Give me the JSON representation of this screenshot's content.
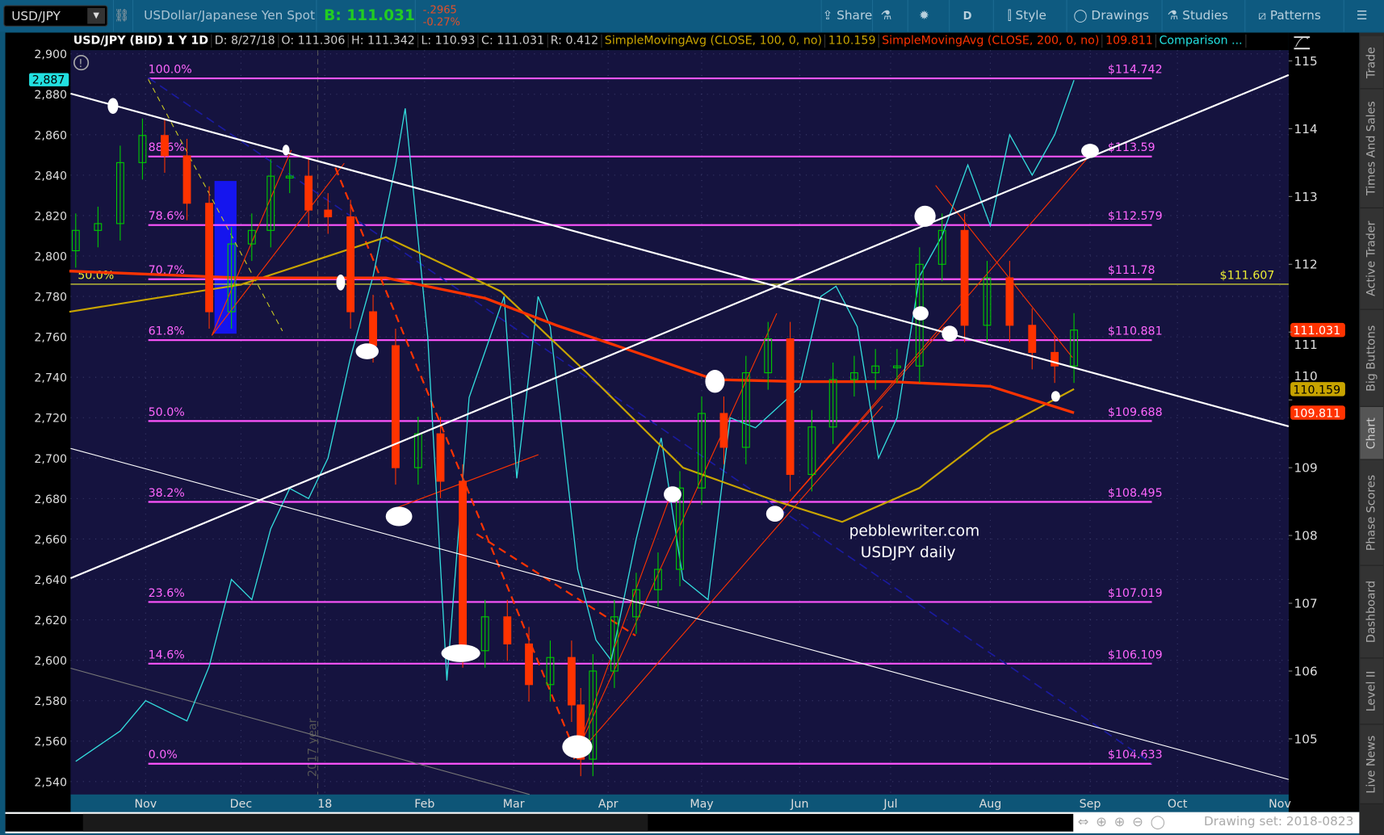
{
  "toolbar": {
    "symbol": "USD/JPY",
    "description": "USDollar/Japanese Yen Spot",
    "bid": "B: 111.031",
    "change": "-.2965",
    "change_pct": "-0.27%",
    "buttons": [
      "Share",
      "D",
      "Style",
      "Drawings",
      "Studies",
      "Patterns"
    ]
  },
  "infobar": {
    "title": "USD/JPY (BID) 1 Y 1D",
    "date": "D: 8/27/18",
    "open": "O: 111.306",
    "high": "H: 111.342",
    "low": "L: 110.93",
    "close": "C: 111.031",
    "range": "R: 0.412",
    "sma100_label": "SimpleMovingAvg (CLOSE, 100, 0, no)",
    "sma100_value": "110.159",
    "sma200_label": "SimpleMovingAvg (CLOSE, 200, 0, no)",
    "sma200_value": "109.811",
    "comparison": "Comparison ..."
  },
  "side_tabs": [
    "Trade",
    "Times And Sales",
    "Active Trader",
    "Big Buttons",
    "Chart",
    "Phase Scores",
    "Dashboard",
    "Level II",
    "Live News"
  ],
  "active_tab": "Chart",
  "status": {
    "drawing_set": "Drawing set: 2018-0823"
  },
  "annotations": {
    "watermark_1": "pebblewriter.com",
    "watermark_2": "USDJPY daily",
    "year_marker": "2017 year",
    "left_fib_label": "50.0%",
    "horizontal_level": "$111.607"
  },
  "colors": {
    "background": "#15133f",
    "fib": "#ff55ff",
    "up": "#00cc00",
    "down": "#ff3300",
    "sma100": "#c8a400",
    "sma200": "#ff3300",
    "comparison": "#33dddd"
  },
  "chart_data": {
    "type": "candlestick",
    "title": "USD/JPY (BID) 1 Y 1D",
    "right_axis": {
      "ticks": [
        "115",
        "114",
        "113",
        "112",
        "111",
        "110",
        "109",
        "108",
        "107",
        "106",
        "105"
      ],
      "range": [
        104.4,
        115.1
      ]
    },
    "left_axis": {
      "ticks": [
        "2,900",
        "2,880",
        "2,860",
        "2,840",
        "2,820",
        "2,800",
        "2,780",
        "2,760",
        "2,740",
        "2,720",
        "2,700",
        "2,680",
        "2,660",
        "2,640",
        "2,620",
        "2,600",
        "2,580",
        "2,560",
        "2,540"
      ],
      "range": [
        2535,
        2902
      ],
      "marker": "2,887"
    },
    "x_ticks": [
      "Nov",
      "Dec",
      "18",
      "Feb",
      "Mar",
      "Apr",
      "May",
      "Jun",
      "Jul",
      "Aug",
      "Sep",
      "Oct",
      "Nov"
    ],
    "price_markers": {
      "last": "111.031",
      "sma100": "110.159",
      "sma200": "109.811"
    },
    "usdjpy_approx_closes": [
      [
        "2017-10-10",
        112.5
      ],
      [
        "2017-10-17",
        112.6
      ],
      [
        "2017-10-24",
        113.5
      ],
      [
        "2017-10-31",
        113.9
      ],
      [
        "2017-11-07",
        113.6
      ],
      [
        "2017-11-14",
        112.9
      ],
      [
        "2017-11-21",
        111.3
      ],
      [
        "2017-11-28",
        112.3
      ],
      [
        "2017-12-05",
        112.5
      ],
      [
        "2017-12-12",
        113.3
      ],
      [
        "2017-12-19",
        113.3
      ],
      [
        "2017-12-26",
        112.8
      ],
      [
        "2018-01-02",
        112.7
      ],
      [
        "2018-01-09",
        111.3
      ],
      [
        "2018-01-16",
        110.8
      ],
      [
        "2018-01-23",
        109.0
      ],
      [
        "2018-01-30",
        109.5
      ],
      [
        "2018-02-06",
        108.8
      ],
      [
        "2018-02-13",
        106.3
      ],
      [
        "2018-02-20",
        106.8
      ],
      [
        "2018-02-27",
        106.4
      ],
      [
        "2018-03-06",
        105.8
      ],
      [
        "2018-03-13",
        106.2
      ],
      [
        "2018-03-20",
        105.5
      ],
      [
        "2018-03-23",
        104.7
      ],
      [
        "2018-03-27",
        106.0
      ],
      [
        "2018-04-03",
        106.8
      ],
      [
        "2018-04-10",
        107.2
      ],
      [
        "2018-04-17",
        107.5
      ],
      [
        "2018-04-24",
        108.7
      ],
      [
        "2018-05-01",
        109.8
      ],
      [
        "2018-05-08",
        109.3
      ],
      [
        "2018-05-15",
        110.4
      ],
      [
        "2018-05-22",
        110.9
      ],
      [
        "2018-05-29",
        108.9
      ],
      [
        "2018-06-05",
        109.6
      ],
      [
        "2018-06-12",
        110.3
      ],
      [
        "2018-06-19",
        110.4
      ],
      [
        "2018-06-26",
        110.5
      ],
      [
        "2018-07-03",
        110.5
      ],
      [
        "2018-07-10",
        112.0
      ],
      [
        "2018-07-17",
        112.5
      ],
      [
        "2018-07-24",
        111.1
      ],
      [
        "2018-07-31",
        111.8
      ],
      [
        "2018-08-07",
        111.1
      ],
      [
        "2018-08-14",
        110.7
      ],
      [
        "2018-08-21",
        110.5
      ],
      [
        "2018-08-27",
        111.03
      ]
    ],
    "comparison_series": [
      [
        "2017-10-10",
        2550
      ],
      [
        "2017-10-24",
        2565
      ],
      [
        "2017-11-01",
        2580
      ],
      [
        "2017-11-14",
        2570
      ],
      [
        "2017-11-21",
        2597
      ],
      [
        "2017-11-28",
        2640
      ],
      [
        "2017-12-05",
        2630
      ],
      [
        "2017-12-12",
        2665
      ],
      [
        "2017-12-19",
        2685
      ],
      [
        "2017-12-26",
        2680
      ],
      [
        "2018-01-02",
        2700
      ],
      [
        "2018-01-09",
        2750
      ],
      [
        "2018-01-16",
        2790
      ],
      [
        "2018-01-23",
        2845
      ],
      [
        "2018-01-26",
        2873
      ],
      [
        "2018-02-02",
        2760
      ],
      [
        "2018-02-08",
        2590
      ],
      [
        "2018-02-15",
        2730
      ],
      [
        "2018-02-26",
        2780
      ],
      [
        "2018-03-02",
        2690
      ],
      [
        "2018-03-09",
        2780
      ],
      [
        "2018-03-13",
        2765
      ],
      [
        "2018-03-22",
        2645
      ],
      [
        "2018-03-28",
        2610
      ],
      [
        "2018-04-02",
        2600
      ],
      [
        "2018-04-10",
        2660
      ],
      [
        "2018-04-18",
        2710
      ],
      [
        "2018-04-25",
        2640
      ],
      [
        "2018-05-03",
        2630
      ],
      [
        "2018-05-10",
        2720
      ],
      [
        "2018-05-18",
        2715
      ],
      [
        "2018-05-25",
        2725
      ],
      [
        "2018-06-01",
        2735
      ],
      [
        "2018-06-08",
        2780
      ],
      [
        "2018-06-13",
        2785
      ],
      [
        "2018-06-20",
        2765
      ],
      [
        "2018-06-27",
        2700
      ],
      [
        "2018-07-03",
        2720
      ],
      [
        "2018-07-10",
        2790
      ],
      [
        "2018-07-17",
        2810
      ],
      [
        "2018-07-25",
        2845
      ],
      [
        "2018-08-01",
        2815
      ],
      [
        "2018-08-07",
        2860
      ],
      [
        "2018-08-14",
        2840
      ],
      [
        "2018-08-21",
        2860
      ],
      [
        "2018-08-27",
        2887
      ]
    ],
    "sma100": [
      [
        "2017-10-08",
        111.3
      ],
      [
        "2017-12-01",
        111.7
      ],
      [
        "2018-01-20",
        112.4
      ],
      [
        "2018-02-25",
        111.6
      ],
      [
        "2018-03-25",
        110.4
      ],
      [
        "2018-04-25",
        109.0
      ],
      [
        "2018-05-25",
        108.5
      ],
      [
        "2018-06-15",
        108.2
      ],
      [
        "2018-07-10",
        108.7
      ],
      [
        "2018-08-01",
        109.5
      ],
      [
        "2018-08-27",
        110.16
      ]
    ],
    "sma200": [
      [
        "2017-10-08",
        111.9
      ],
      [
        "2017-12-01",
        111.8
      ],
      [
        "2018-01-20",
        111.8
      ],
      [
        "2018-02-20",
        111.5
      ],
      [
        "2018-03-15",
        111.1
      ],
      [
        "2018-04-10",
        110.7
      ],
      [
        "2018-05-05",
        110.3
      ],
      [
        "2018-06-01",
        110.27
      ],
      [
        "2018-07-01",
        110.27
      ],
      [
        "2018-08-01",
        110.2
      ],
      [
        "2018-08-27",
        109.81
      ]
    ],
    "fib_levels": [
      {
        "pct": "100.0%",
        "price": 114.742,
        "label": "$114.742"
      },
      {
        "pct": "88.6%",
        "price": 113.59,
        "label": "$113.59"
      },
      {
        "pct": "78.6%",
        "price": 112.579,
        "label": "$112.579"
      },
      {
        "pct": "70.7%",
        "price": 111.78,
        "label": "$111.78"
      },
      {
        "pct": "61.8%",
        "price": 110.881,
        "label": "$110.881"
      },
      {
        "pct": "50.0%",
        "price": 109.688,
        "label": "$109.688"
      },
      {
        "pct": "38.2%",
        "price": 108.495,
        "label": "$108.495"
      },
      {
        "pct": "23.6%",
        "price": 107.019,
        "label": "$107.019"
      },
      {
        "pct": "14.6%",
        "price": 106.109,
        "label": "$106.109"
      },
      {
        "pct": "0.0%",
        "price": 104.633,
        "label": "$104.633"
      }
    ],
    "horizontal_line": 111.607
  }
}
